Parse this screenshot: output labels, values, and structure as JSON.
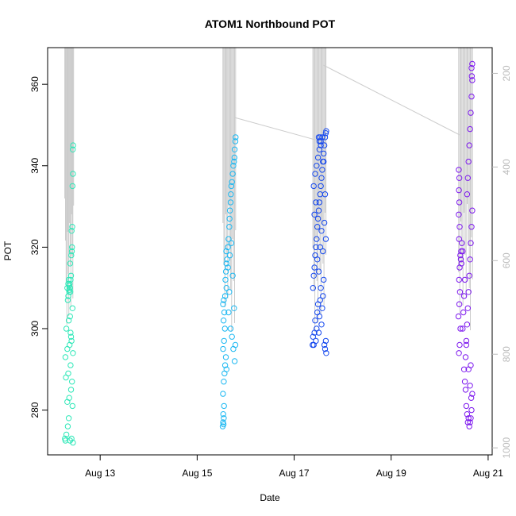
{
  "chart_data": {
    "type": "scatter",
    "title": "ATOM1 Northbound POT",
    "xlabel": "Date",
    "ylabel": "POT",
    "x_ticks": [
      {
        "date": "2012-08-13",
        "label": "Aug 13"
      },
      {
        "date": "2012-08-15",
        "label": "Aug 15"
      },
      {
        "date": "2012-08-17",
        "label": "Aug 17"
      },
      {
        "date": "2012-08-19",
        "label": "Aug 19"
      },
      {
        "date": "2012-08-21",
        "label": "Aug 21"
      }
    ],
    "xlim": [
      "2012-08-11T22:00",
      "2012-08-21T02:00"
    ],
    "ylim": [
      269,
      369
    ],
    "y_ticks": [
      280,
      300,
      320,
      340,
      360
    ],
    "y2_ticks": [
      200,
      400,
      600,
      800,
      1000
    ],
    "y2lim": [
      1015,
      145
    ],
    "series": [
      {
        "color": "#2ee8b8",
        "marker": "open-circle",
        "x_range": [
          "2012-08-12T06:20",
          "2012-08-12T11:00"
        ],
        "points": [
          [
            0.05,
            273
          ],
          [
            0.1,
            272.5
          ],
          [
            0.2,
            274
          ],
          [
            0.35,
            276
          ],
          [
            0.45,
            278
          ],
          [
            0.6,
            272.5
          ],
          [
            0.75,
            273
          ],
          [
            0.9,
            272
          ],
          [
            0.3,
            282
          ],
          [
            0.5,
            283
          ],
          [
            0.7,
            285
          ],
          [
            0.85,
            281
          ],
          [
            0.15,
            288
          ],
          [
            0.4,
            289
          ],
          [
            0.65,
            291
          ],
          [
            0.8,
            287
          ],
          [
            0.1,
            293
          ],
          [
            0.3,
            295
          ],
          [
            0.55,
            296
          ],
          [
            0.7,
            298
          ],
          [
            0.9,
            294
          ],
          [
            0.2,
            300
          ],
          [
            0.45,
            302
          ],
          [
            0.6,
            303
          ],
          [
            0.85,
            305
          ],
          [
            0.35,
            307
          ],
          [
            0.5,
            309
          ],
          [
            0.3,
            310
          ],
          [
            0.4,
            311
          ],
          [
            0.45,
            312
          ],
          [
            0.5,
            309.5
          ],
          [
            0.55,
            311
          ],
          [
            0.6,
            310
          ],
          [
            0.65,
            312
          ],
          [
            0.7,
            313
          ],
          [
            0.4,
            308
          ],
          [
            0.5,
            310.5
          ],
          [
            0.62,
            309
          ],
          [
            0.72,
            318
          ],
          [
            0.78,
            319
          ],
          [
            0.8,
            320
          ],
          [
            0.76,
            324
          ],
          [
            0.82,
            325
          ],
          [
            0.85,
            335
          ],
          [
            0.9,
            338
          ],
          [
            0.88,
            344
          ],
          [
            0.92,
            345
          ],
          [
            0.6,
            316
          ],
          [
            0.75,
            297
          ],
          [
            0.65,
            299
          ]
        ]
      },
      {
        "color": "#1cb8f2",
        "marker": "open-circle",
        "x_range": [
          "2012-08-15T12:30",
          "2012-08-15T19:15"
        ],
        "points": [
          [
            0.02,
            276
          ],
          [
            0.05,
            277
          ],
          [
            0.08,
            276.5
          ],
          [
            0.1,
            278
          ],
          [
            0.06,
            279
          ],
          [
            0.12,
            281
          ],
          [
            0.04,
            284
          ],
          [
            0.1,
            287
          ],
          [
            0.15,
            289
          ],
          [
            0.2,
            291
          ],
          [
            0.25,
            293
          ],
          [
            0.3,
            290
          ],
          [
            0.05,
            295
          ],
          [
            0.12,
            297
          ],
          [
            0.18,
            300
          ],
          [
            0.08,
            302
          ],
          [
            0.14,
            304
          ],
          [
            0.05,
            306
          ],
          [
            0.1,
            307
          ],
          [
            0.2,
            308
          ],
          [
            0.3,
            310
          ],
          [
            0.22,
            312
          ],
          [
            0.26,
            314
          ],
          [
            0.3,
            316
          ],
          [
            0.34,
            317
          ],
          [
            0.28,
            319
          ],
          [
            0.4,
            320
          ],
          [
            0.45,
            322
          ],
          [
            0.5,
            325
          ],
          [
            0.52,
            327
          ],
          [
            0.55,
            329
          ],
          [
            0.6,
            331
          ],
          [
            0.62,
            333
          ],
          [
            0.65,
            335
          ],
          [
            0.7,
            336
          ],
          [
            0.75,
            338
          ],
          [
            0.8,
            340
          ],
          [
            0.85,
            341
          ],
          [
            0.88,
            342
          ],
          [
            0.9,
            344
          ],
          [
            0.95,
            346
          ],
          [
            0.97,
            347
          ],
          [
            0.6,
            300
          ],
          [
            0.7,
            298
          ],
          [
            0.8,
            295
          ],
          [
            0.9,
            292
          ],
          [
            0.95,
            296
          ],
          [
            0.5,
            309
          ],
          [
            0.45,
            304
          ],
          [
            0.85,
            305
          ],
          [
            0.4,
            315
          ],
          [
            0.55,
            318
          ],
          [
            0.65,
            321
          ],
          [
            0.75,
            313
          ]
        ]
      },
      {
        "color": "#1447ee",
        "marker": "open-circle",
        "x_range": [
          "2012-08-17T09:00",
          "2012-08-17T16:00"
        ],
        "points": [
          [
            0.02,
            296
          ],
          [
            0.05,
            298
          ],
          [
            0.1,
            296
          ],
          [
            0.15,
            299
          ],
          [
            0.2,
            302
          ],
          [
            0.25,
            297
          ],
          [
            0.3,
            300
          ],
          [
            0.35,
            304
          ],
          [
            0.4,
            306
          ],
          [
            0.45,
            299
          ],
          [
            0.5,
            303
          ],
          [
            0.55,
            307
          ],
          [
            0.6,
            310
          ],
          [
            0.65,
            301
          ],
          [
            0.7,
            305
          ],
          [
            0.75,
            308
          ],
          [
            0.8,
            312
          ],
          [
            0.85,
            296
          ],
          [
            0.9,
            295
          ],
          [
            0.95,
            297
          ],
          [
            0.98,
            294
          ],
          [
            0.05,
            310
          ],
          [
            0.1,
            313
          ],
          [
            0.15,
            315
          ],
          [
            0.2,
            318
          ],
          [
            0.25,
            320
          ],
          [
            0.3,
            322
          ],
          [
            0.35,
            325
          ],
          [
            0.4,
            327
          ],
          [
            0.45,
            329
          ],
          [
            0.5,
            331
          ],
          [
            0.55,
            333
          ],
          [
            0.6,
            335
          ],
          [
            0.65,
            337
          ],
          [
            0.7,
            339
          ],
          [
            0.75,
            341
          ],
          [
            0.8,
            343
          ],
          [
            0.85,
            345
          ],
          [
            0.9,
            347
          ],
          [
            0.95,
            348
          ],
          [
            0.98,
            348.5
          ],
          [
            0.1,
            335
          ],
          [
            0.2,
            338
          ],
          [
            0.3,
            340
          ],
          [
            0.4,
            342
          ],
          [
            0.5,
            344
          ],
          [
            0.6,
            346
          ],
          [
            0.7,
            347
          ],
          [
            0.8,
            341
          ],
          [
            0.9,
            333
          ],
          [
            0.15,
            328
          ],
          [
            0.25,
            331
          ],
          [
            0.35,
            317
          ],
          [
            0.45,
            314
          ],
          [
            0.55,
            320
          ],
          [
            0.65,
            324
          ],
          [
            0.75,
            319
          ],
          [
            0.85,
            326
          ],
          [
            0.95,
            322
          ],
          [
            0.5,
            346
          ],
          [
            0.55,
            347
          ],
          [
            0.6,
            345
          ],
          [
            0.45,
            347
          ]
        ]
      },
      {
        "color": "#7d18ee",
        "marker": "open-circle",
        "x_range": [
          "2012-08-20T09:10",
          "2012-08-20T16:30"
        ],
        "points": [
          [
            0.05,
            294
          ],
          [
            0.1,
            296
          ],
          [
            0.15,
            300
          ],
          [
            0.02,
            303
          ],
          [
            0.08,
            306
          ],
          [
            0.12,
            309
          ],
          [
            0.06,
            312
          ],
          [
            0.1,
            315
          ],
          [
            0.14,
            318
          ],
          [
            0.18,
            317
          ],
          [
            0.22,
            316
          ],
          [
            0.2,
            319
          ],
          [
            0.25,
            321
          ],
          [
            0.3,
            319
          ],
          [
            0.06,
            322
          ],
          [
            0.1,
            325
          ],
          [
            0.04,
            328
          ],
          [
            0.08,
            331
          ],
          [
            0.05,
            334
          ],
          [
            0.08,
            337
          ],
          [
            0.04,
            339
          ],
          [
            0.4,
            290
          ],
          [
            0.45,
            287
          ],
          [
            0.5,
            285
          ],
          [
            0.55,
            281
          ],
          [
            0.6,
            279
          ],
          [
            0.65,
            277
          ],
          [
            0.7,
            278
          ],
          [
            0.75,
            276
          ],
          [
            0.8,
            277
          ],
          [
            0.85,
            278
          ],
          [
            0.9,
            280
          ],
          [
            0.95,
            284
          ],
          [
            0.5,
            293
          ],
          [
            0.55,
            297
          ],
          [
            0.6,
            301
          ],
          [
            0.65,
            305
          ],
          [
            0.7,
            309
          ],
          [
            0.75,
            313
          ],
          [
            0.8,
            317
          ],
          [
            0.85,
            321
          ],
          [
            0.9,
            325
          ],
          [
            0.95,
            329
          ],
          [
            0.6,
            333
          ],
          [
            0.65,
            337
          ],
          [
            0.7,
            341
          ],
          [
            0.75,
            345
          ],
          [
            0.8,
            349
          ],
          [
            0.85,
            353
          ],
          [
            0.9,
            357
          ],
          [
            0.95,
            361
          ],
          [
            0.9,
            364
          ],
          [
            0.95,
            365
          ],
          [
            0.92,
            362
          ],
          [
            0.3,
            300
          ],
          [
            0.35,
            304
          ],
          [
            0.4,
            308
          ],
          [
            0.45,
            312
          ],
          [
            0.55,
            296
          ],
          [
            0.7,
            290
          ],
          [
            0.8,
            286
          ],
          [
            0.85,
            291
          ],
          [
            0.88,
            283
          ]
        ]
      }
    ]
  }
}
